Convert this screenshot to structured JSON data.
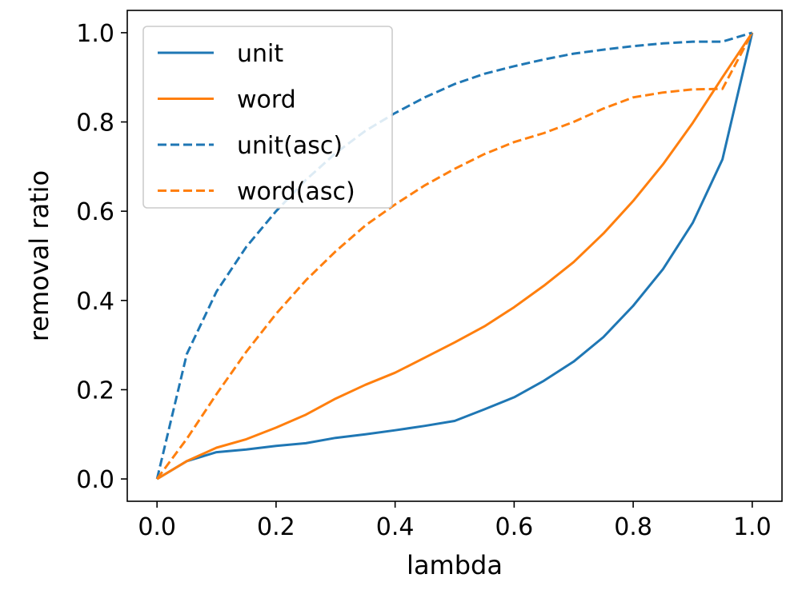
{
  "chart_data": {
    "type": "line",
    "xlabel": "lambda",
    "ylabel": "removal ratio",
    "xlim": [
      -0.05,
      1.05
    ],
    "ylim": [
      -0.05,
      1.05
    ],
    "xticks": [
      "0.0",
      "0.2",
      "0.4",
      "0.6",
      "0.8",
      "1.0"
    ],
    "yticks": [
      "0.0",
      "0.2",
      "0.4",
      "0.6",
      "0.8",
      "1.0"
    ],
    "grid": false,
    "legend_position": "top-left",
    "x": [
      0.0,
      0.05,
      0.1,
      0.15,
      0.2,
      0.25,
      0.3,
      0.35,
      0.4,
      0.45,
      0.5,
      0.55,
      0.6,
      0.65,
      0.7,
      0.75,
      0.8,
      0.85,
      0.9,
      0.95,
      1.0
    ],
    "series": [
      {
        "name": "unit",
        "color": "#1f77b4",
        "style": "solid",
        "values": [
          0.0,
          0.04,
          0.06,
          0.066,
          0.074,
          0.08,
          0.092,
          0.1,
          0.109,
          0.119,
          0.13,
          0.156,
          0.183,
          0.22,
          0.263,
          0.318,
          0.388,
          0.47,
          0.574,
          0.716,
          1.0
        ]
      },
      {
        "name": "word",
        "color": "#ff7f0e",
        "style": "solid",
        "values": [
          0.0,
          0.04,
          0.07,
          0.089,
          0.115,
          0.144,
          0.18,
          0.211,
          0.238,
          0.272,
          0.306,
          0.342,
          0.385,
          0.433,
          0.486,
          0.55,
          0.623,
          0.705,
          0.798,
          0.9,
          1.0
        ]
      },
      {
        "name": "unit(asc)",
        "color": "#1f77b4",
        "style": "dashed",
        "values": [
          0.0,
          0.28,
          0.42,
          0.52,
          0.6,
          0.67,
          0.73,
          0.78,
          0.82,
          0.855,
          0.885,
          0.908,
          0.925,
          0.94,
          0.953,
          0.962,
          0.97,
          0.976,
          0.98,
          0.98,
          1.0
        ]
      },
      {
        "name": "word(asc)",
        "color": "#ff7f0e",
        "style": "dashed",
        "values": [
          0.0,
          0.09,
          0.19,
          0.285,
          0.37,
          0.445,
          0.51,
          0.568,
          0.615,
          0.658,
          0.695,
          0.728,
          0.755,
          0.775,
          0.8,
          0.83,
          0.855,
          0.866,
          0.873,
          0.874,
          1.0
        ]
      }
    ]
  }
}
